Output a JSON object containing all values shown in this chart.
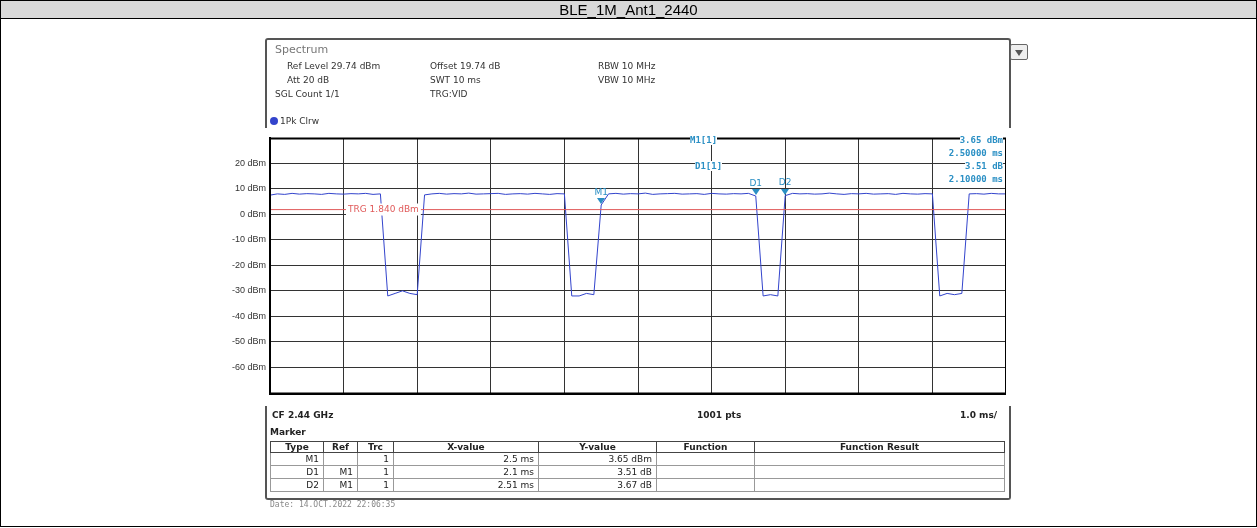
{
  "chart_data": {
    "type": "line",
    "title": "BLE_1M_Ant1_2440",
    "categories": [
      null,
      null,
      null,
      null,
      null,
      null,
      null,
      null,
      null,
      null,
      null,
      null,
      null,
      null,
      null,
      null,
      null,
      null,
      null,
      null,
      null,
      null,
      null,
      null,
      null,
      null,
      null,
      null,
      null,
      null,
      null,
      null,
      null,
      null,
      null,
      null,
      null,
      null,
      null,
      null,
      null,
      null,
      null,
      null,
      null,
      null,
      null,
      null,
      null,
      null,
      null,
      null,
      null,
      null,
      null,
      null,
      null,
      null,
      null,
      null,
      null,
      null,
      null,
      null,
      null,
      null,
      null,
      null,
      null,
      null,
      null,
      null,
      null,
      null,
      null,
      null,
      null,
      null,
      null,
      null,
      null,
      null,
      null,
      null,
      null,
      null,
      null,
      null,
      null,
      null,
      null,
      null,
      null,
      null,
      null,
      null,
      null,
      null,
      null,
      null,
      null
    ],
    "series": [
      {
        "name": "1Pk Clrw",
        "color": "#3344cc",
        "values": [
          7.5,
          8,
          7.8,
          8.2,
          7.9,
          8.1,
          8,
          7.8,
          8.2,
          8,
          7.9,
          8.1,
          8,
          8.2,
          7.8,
          8,
          -32,
          -31,
          -30,
          -31,
          -31.5,
          7.6,
          8,
          8.2,
          7.9,
          8.1,
          8,
          8.3,
          7.9,
          8,
          8.1,
          8.2,
          7.8,
          8,
          8.1,
          7.9,
          8.2,
          8,
          7.8,
          8.1,
          8,
          -32,
          -32,
          -31,
          -31.5,
          3.65,
          8,
          8.2,
          7.9,
          8.1,
          8,
          8.3,
          7.8,
          8,
          8.1,
          8.2,
          7.9,
          8,
          8.1,
          7.8,
          8.2,
          8,
          7.9,
          8.1,
          8,
          8.2,
          7.16,
          -32,
          -31.5,
          -32,
          7.32,
          8.2,
          8,
          8.1,
          7.9,
          8,
          8.3,
          8,
          7.8,
          8.1,
          8,
          8.2,
          7.9,
          8,
          8.1,
          7.8,
          8.2,
          8,
          7.9,
          8.1,
          8,
          -32,
          -31,
          -31.5,
          -31,
          8,
          8.1,
          7.9,
          8.2,
          8,
          8
        ]
      }
    ],
    "ylim": [
      -70.26,
      29.74
    ],
    "yticks": [
      {
        "value": 20,
        "label": "20 dBm"
      },
      {
        "value": 10,
        "label": "10 dBm"
      },
      {
        "value": 0,
        "label": "0 dBm"
      },
      {
        "value": -10,
        "label": "-10 dBm"
      },
      {
        "value": -20,
        "label": "-20 dBm"
      },
      {
        "value": -30,
        "label": "-30 dBm"
      },
      {
        "value": -40,
        "label": "-40 dBm"
      },
      {
        "value": -50,
        "label": "-50 dBm"
      },
      {
        "value": -60,
        "label": "-60 dBm"
      }
    ],
    "tick_labels": "y",
    "grid": true,
    "legend": "top left",
    "marker": "none",
    "line_style": "solid",
    "ref_lines": [
      {
        "axis": "y",
        "value": 1.84,
        "label": "TRG 1.840 dBm",
        "color": "#e05a5a"
      }
    ],
    "annotations": [
      "Spectrum",
      "Ref Level 29.74 dBm",
      "Offset 19.74 dB",
      "RBW 10 MHz",
      "Att 20 dB",
      "SWT 10 ms",
      "VBW 10 MHz",
      "SGL Count 1/1",
      "TRG:VID",
      "M1[1]",
      "3.65 dBm",
      "2.50000 ms",
      "D1[1]",
      "3.51 dB",
      "2.10000 ms",
      "CF 2.44 GHz",
      "1001 pts",
      "1.0 ms/",
      "Marker",
      "Type",
      "Ref",
      "Trc",
      "X-value",
      "Y-value",
      "Function",
      "Function Result",
      "M1",
      "1",
      "2.5 ms",
      "3.65 dBm",
      "D1",
      "M1",
      "1",
      "2.1 ms",
      "3.51 dB",
      "D2",
      "M1",
      "1",
      "2.51 ms",
      "3.67 dB",
      "Date: 14.OCT.2022  22:06:35",
      {
        "text": "M1",
        "y": 3.65
      },
      {
        "text": "D1",
        "y": 7.16
      },
      {
        "text": "D2",
        "y": 7.32
      }
    ]
  }
}
